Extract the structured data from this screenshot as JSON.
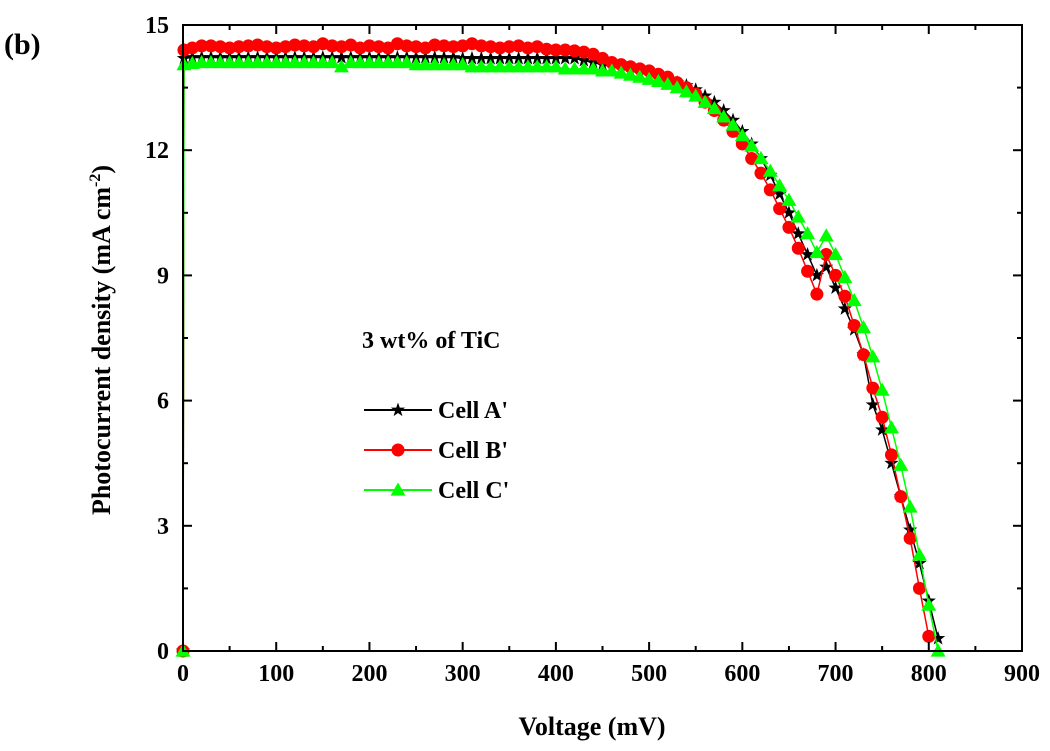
{
  "panel_label": "(b)",
  "chart_data": {
    "type": "line",
    "xlabel": "Voltage (mV)",
    "ylabel": {
      "main": "Photocurrent density (mA cm",
      "sup": "-2",
      "close": ")"
    },
    "xlim": [
      0,
      900
    ],
    "ylim": [
      0,
      15
    ],
    "x_ticks": [
      0,
      100,
      200,
      300,
      400,
      500,
      600,
      700,
      800,
      900
    ],
    "x_tick_labels": [
      "0",
      "100",
      "200",
      "300",
      "400",
      "500",
      "600",
      "700",
      "800",
      "900"
    ],
    "y_ticks": [
      0,
      3,
      6,
      9,
      12,
      15
    ],
    "y_tick_labels": [
      "0",
      "3",
      "6",
      "9",
      "12",
      "15"
    ],
    "grid": false,
    "annotation": "3 wt% of TiC",
    "legend_position": "center-left",
    "series": [
      {
        "name": "Cell A'",
        "color": "#000000",
        "marker": "star",
        "points": [
          [
            0,
            0
          ],
          [
            1,
            14.2
          ],
          [
            10,
            14.22
          ],
          [
            20,
            14.22
          ],
          [
            30,
            14.22
          ],
          [
            40,
            14.22
          ],
          [
            50,
            14.22
          ],
          [
            60,
            14.22
          ],
          [
            70,
            14.22
          ],
          [
            80,
            14.22
          ],
          [
            90,
            14.22
          ],
          [
            100,
            14.22
          ],
          [
            110,
            14.22
          ],
          [
            120,
            14.22
          ],
          [
            130,
            14.22
          ],
          [
            140,
            14.22
          ],
          [
            150,
            14.22
          ],
          [
            160,
            14.22
          ],
          [
            170,
            14.22
          ],
          [
            180,
            14.22
          ],
          [
            190,
            14.22
          ],
          [
            200,
            14.22
          ],
          [
            210,
            14.22
          ],
          [
            220,
            14.22
          ],
          [
            230,
            14.22
          ],
          [
            240,
            14.22
          ],
          [
            250,
            14.22
          ],
          [
            260,
            14.22
          ],
          [
            270,
            14.22
          ],
          [
            280,
            14.22
          ],
          [
            290,
            14.22
          ],
          [
            300,
            14.2
          ],
          [
            310,
            14.2
          ],
          [
            320,
            14.2
          ],
          [
            330,
            14.2
          ],
          [
            340,
            14.2
          ],
          [
            350,
            14.2
          ],
          [
            360,
            14.2
          ],
          [
            370,
            14.2
          ],
          [
            380,
            14.2
          ],
          [
            390,
            14.2
          ],
          [
            400,
            14.2
          ],
          [
            410,
            14.2
          ],
          [
            420,
            14.2
          ],
          [
            430,
            14.15
          ],
          [
            440,
            14.1
          ],
          [
            450,
            14.05
          ],
          [
            460,
            14.0
          ],
          [
            470,
            13.95
          ],
          [
            480,
            13.9
          ],
          [
            490,
            13.85
          ],
          [
            500,
            13.8
          ],
          [
            510,
            13.75
          ],
          [
            520,
            13.7
          ],
          [
            530,
            13.62
          ],
          [
            540,
            13.55
          ],
          [
            550,
            13.45
          ],
          [
            560,
            13.3
          ],
          [
            570,
            13.15
          ],
          [
            580,
            12.95
          ],
          [
            590,
            12.72
          ],
          [
            600,
            12.45
          ],
          [
            610,
            12.15
          ],
          [
            620,
            11.8
          ],
          [
            630,
            11.4
          ],
          [
            640,
            10.95
          ],
          [
            650,
            10.5
          ],
          [
            660,
            10.0
          ],
          [
            670,
            9.5
          ],
          [
            680,
            9.0
          ],
          [
            690,
            9.2
          ],
          [
            700,
            8.7
          ],
          [
            710,
            8.2
          ],
          [
            720,
            7.7
          ],
          [
            730,
            7.1
          ],
          [
            740,
            5.9
          ],
          [
            750,
            5.3
          ],
          [
            760,
            4.5
          ],
          [
            770,
            3.7
          ],
          [
            780,
            2.9
          ],
          [
            790,
            2.1
          ],
          [
            800,
            1.2
          ],
          [
            810,
            0.3
          ]
        ]
      },
      {
        "name": "Cell B'",
        "color": "#ff0000",
        "marker": "circle",
        "points": [
          [
            0,
            0
          ],
          [
            1,
            14.4
          ],
          [
            10,
            14.45
          ],
          [
            20,
            14.5
          ],
          [
            30,
            14.5
          ],
          [
            40,
            14.48
          ],
          [
            50,
            14.45
          ],
          [
            60,
            14.48
          ],
          [
            70,
            14.5
          ],
          [
            80,
            14.52
          ],
          [
            90,
            14.48
          ],
          [
            100,
            14.45
          ],
          [
            110,
            14.48
          ],
          [
            120,
            14.52
          ],
          [
            130,
            14.5
          ],
          [
            140,
            14.48
          ],
          [
            150,
            14.55
          ],
          [
            160,
            14.5
          ],
          [
            170,
            14.48
          ],
          [
            180,
            14.52
          ],
          [
            190,
            14.45
          ],
          [
            200,
            14.5
          ],
          [
            210,
            14.48
          ],
          [
            220,
            14.45
          ],
          [
            230,
            14.55
          ],
          [
            240,
            14.5
          ],
          [
            250,
            14.48
          ],
          [
            260,
            14.45
          ],
          [
            270,
            14.52
          ],
          [
            280,
            14.5
          ],
          [
            290,
            14.48
          ],
          [
            300,
            14.5
          ],
          [
            310,
            14.55
          ],
          [
            320,
            14.5
          ],
          [
            330,
            14.48
          ],
          [
            340,
            14.45
          ],
          [
            350,
            14.48
          ],
          [
            360,
            14.5
          ],
          [
            370,
            14.45
          ],
          [
            380,
            14.48
          ],
          [
            390,
            14.42
          ],
          [
            400,
            14.4
          ],
          [
            410,
            14.4
          ],
          [
            420,
            14.38
          ],
          [
            430,
            14.35
          ],
          [
            440,
            14.3
          ],
          [
            450,
            14.2
          ],
          [
            460,
            14.1
          ],
          [
            470,
            14.05
          ],
          [
            480,
            14.0
          ],
          [
            490,
            13.95
          ],
          [
            500,
            13.9
          ],
          [
            510,
            13.82
          ],
          [
            520,
            13.75
          ],
          [
            530,
            13.62
          ],
          [
            540,
            13.5
          ],
          [
            550,
            13.35
          ],
          [
            560,
            13.15
          ],
          [
            570,
            12.95
          ],
          [
            580,
            12.72
          ],
          [
            590,
            12.45
          ],
          [
            600,
            12.15
          ],
          [
            610,
            11.8
          ],
          [
            620,
            11.45
          ],
          [
            630,
            11.05
          ],
          [
            640,
            10.6
          ],
          [
            650,
            10.15
          ],
          [
            660,
            9.65
          ],
          [
            670,
            9.1
          ],
          [
            680,
            8.55
          ],
          [
            690,
            9.5
          ],
          [
            700,
            9.0
          ],
          [
            710,
            8.5
          ],
          [
            720,
            7.8
          ],
          [
            730,
            7.1
          ],
          [
            740,
            6.3
          ],
          [
            750,
            5.6
          ],
          [
            760,
            4.7
          ],
          [
            770,
            3.7
          ],
          [
            780,
            2.7
          ],
          [
            790,
            1.5
          ],
          [
            800,
            0.35
          ]
        ]
      },
      {
        "name": "Cell C'",
        "color": "#00ff00",
        "marker": "triangle",
        "points": [
          [
            0,
            0
          ],
          [
            1,
            14.05
          ],
          [
            10,
            14.08
          ],
          [
            20,
            14.1
          ],
          [
            30,
            14.1
          ],
          [
            40,
            14.1
          ],
          [
            50,
            14.1
          ],
          [
            60,
            14.1
          ],
          [
            70,
            14.1
          ],
          [
            80,
            14.1
          ],
          [
            90,
            14.1
          ],
          [
            100,
            14.1
          ],
          [
            110,
            14.1
          ],
          [
            120,
            14.1
          ],
          [
            130,
            14.1
          ],
          [
            140,
            14.1
          ],
          [
            150,
            14.1
          ],
          [
            160,
            14.1
          ],
          [
            170,
            14.0
          ],
          [
            180,
            14.1
          ],
          [
            190,
            14.1
          ],
          [
            200,
            14.1
          ],
          [
            210,
            14.1
          ],
          [
            220,
            14.1
          ],
          [
            230,
            14.1
          ],
          [
            240,
            14.1
          ],
          [
            250,
            14.05
          ],
          [
            260,
            14.05
          ],
          [
            270,
            14.05
          ],
          [
            280,
            14.05
          ],
          [
            290,
            14.05
          ],
          [
            300,
            14.05
          ],
          [
            310,
            14.0
          ],
          [
            320,
            14.0
          ],
          [
            330,
            14.0
          ],
          [
            340,
            14.0
          ],
          [
            350,
            14.0
          ],
          [
            360,
            14.0
          ],
          [
            370,
            14.0
          ],
          [
            380,
            14.0
          ],
          [
            390,
            14.0
          ],
          [
            400,
            14.0
          ],
          [
            410,
            13.95
          ],
          [
            420,
            13.95
          ],
          [
            430,
            13.95
          ],
          [
            440,
            13.95
          ],
          [
            450,
            13.9
          ],
          [
            460,
            13.9
          ],
          [
            470,
            13.85
          ],
          [
            480,
            13.8
          ],
          [
            490,
            13.75
          ],
          [
            500,
            13.7
          ],
          [
            510,
            13.65
          ],
          [
            520,
            13.58
          ],
          [
            530,
            13.5
          ],
          [
            540,
            13.4
          ],
          [
            550,
            13.3
          ],
          [
            560,
            13.15
          ],
          [
            570,
            13.0
          ],
          [
            580,
            12.8
          ],
          [
            590,
            12.6
          ],
          [
            600,
            12.35
          ],
          [
            610,
            12.1
          ],
          [
            620,
            11.8
          ],
          [
            630,
            11.5
          ],
          [
            640,
            11.15
          ],
          [
            650,
            10.8
          ],
          [
            660,
            10.4
          ],
          [
            670,
            10.0
          ],
          [
            680,
            9.55
          ],
          [
            690,
            9.95
          ],
          [
            700,
            9.5
          ],
          [
            710,
            8.95
          ],
          [
            720,
            8.4
          ],
          [
            730,
            7.75
          ],
          [
            740,
            7.05
          ],
          [
            750,
            6.25
          ],
          [
            760,
            5.35
          ],
          [
            770,
            4.45
          ],
          [
            780,
            3.45
          ],
          [
            790,
            2.3
          ],
          [
            800,
            1.1
          ],
          [
            810,
            0.0
          ]
        ]
      }
    ]
  }
}
